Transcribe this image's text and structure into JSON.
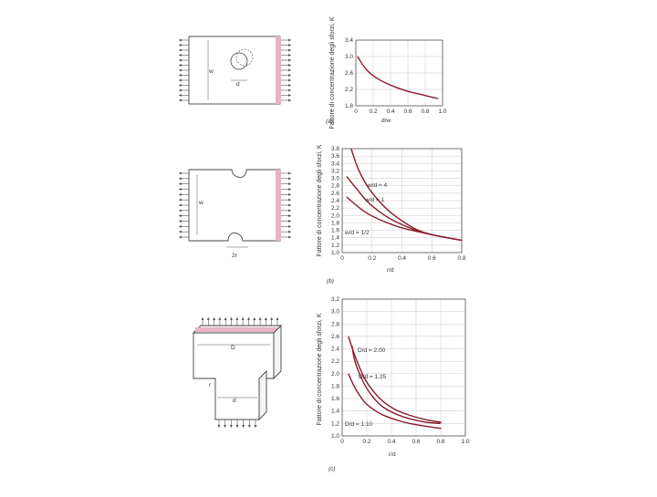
{
  "accent_color": "#8b1a2a",
  "highlight_color": "#e8b4c4",
  "figure_a": {
    "dim_plate_width": "w",
    "dim_hole": "d"
  },
  "figure_b": {
    "dim_width": "w",
    "dim_radius": "2r"
  },
  "figure_c": {
    "dim_top": "D",
    "dim_fillet": "r",
    "dim_stem": "d"
  },
  "chart_data": [
    {
      "type": "line",
      "caption": "(a)",
      "ylabel": "Fattore di concentrazione degli sforzi, K",
      "xlabel": "d/w",
      "xlim": [
        0,
        1.0
      ],
      "ylim": [
        1.8,
        3.4
      ],
      "xticks": [
        "0",
        "0.2",
        "0.4",
        "0.6",
        "0.8",
        "1.0"
      ],
      "yticks": [
        "1.8",
        "2.2",
        "2.6",
        "3.0",
        "3.4"
      ],
      "grid": true,
      "series": [
        {
          "x": [
            0.02,
            0.1,
            0.2,
            0.3,
            0.4,
            0.5,
            0.6,
            0.7,
            0.8,
            0.9,
            0.95
          ],
          "y": [
            3.0,
            2.72,
            2.52,
            2.4,
            2.3,
            2.22,
            2.15,
            2.1,
            2.05,
            2.0,
            1.98
          ]
        }
      ]
    },
    {
      "type": "line",
      "caption": "(b)",
      "ylabel": "Fattore di concentrazione degli sforzi, K",
      "xlabel": "r/d",
      "xlim": [
        0,
        0.8
      ],
      "ylim": [
        1.0,
        3.8
      ],
      "xticks": [
        "0",
        "0.2",
        "0.4",
        "0.6",
        "0.8"
      ],
      "yticks": [
        "1.0",
        "1.2",
        "1.4",
        "1.6",
        "1.8",
        "2.0",
        "2.2",
        "2.4",
        "2.6",
        "2.8",
        "3.0",
        "3.2",
        "3.4",
        "3.6",
        "3.8"
      ],
      "grid": true,
      "series": [
        {
          "name": "w/d = 4",
          "x": [
            0.06,
            0.1,
            0.15,
            0.2,
            0.3,
            0.4,
            0.5,
            0.6,
            0.7,
            0.8
          ],
          "y": [
            3.8,
            3.3,
            2.9,
            2.6,
            2.15,
            1.85,
            1.6,
            1.48,
            1.4,
            1.33
          ]
        },
        {
          "name": "w/d = 1",
          "x": [
            0.03,
            0.1,
            0.15,
            0.2,
            0.3,
            0.4,
            0.5,
            0.6,
            0.7,
            0.8
          ],
          "y": [
            3.05,
            2.7,
            2.45,
            2.25,
            1.95,
            1.75,
            1.58,
            1.48,
            1.4,
            1.33
          ]
        },
        {
          "name": "w/d = 1/2",
          "x": [
            0.03,
            0.1,
            0.15,
            0.2,
            0.3,
            0.4,
            0.5,
            0.6,
            0.7,
            0.8
          ],
          "y": [
            2.5,
            2.25,
            2.1,
            1.98,
            1.8,
            1.66,
            1.57,
            1.48,
            1.4,
            1.33
          ]
        }
      ],
      "labels": [
        "w/d = 4",
        "w/d = 1",
        "w/d = 1/2"
      ]
    },
    {
      "type": "line",
      "caption": "(c)",
      "ylabel": "Fattore di concentrazione degli sforzi, K",
      "xlabel": "r/d",
      "xlim": [
        0,
        1.0
      ],
      "ylim": [
        1.0,
        3.2
      ],
      "xticks": [
        "0",
        "0.2",
        "0.4",
        "0.6",
        "0.8",
        "1.0"
      ],
      "yticks": [
        "1.0",
        "1.2",
        "1.4",
        "1.6",
        "1.8",
        "2.0",
        "2.2",
        "2.4",
        "2.6",
        "2.8",
        "3.0",
        "3.2"
      ],
      "grid": true,
      "series": [
        {
          "name": "D/d = 2.00",
          "x": [
            0.05,
            0.1,
            0.15,
            0.2,
            0.3,
            0.4,
            0.5,
            0.6,
            0.7,
            0.8
          ],
          "y": [
            2.6,
            2.3,
            2.05,
            1.85,
            1.6,
            1.45,
            1.36,
            1.3,
            1.25,
            1.22
          ]
        },
        {
          "name": "D/d = 1.25",
          "x": [
            0.08,
            0.1,
            0.15,
            0.2,
            0.3,
            0.4,
            0.5,
            0.6,
            0.7,
            0.8
          ],
          "y": [
            2.45,
            2.2,
            1.95,
            1.75,
            1.5,
            1.38,
            1.3,
            1.25,
            1.21,
            1.2
          ]
        },
        {
          "name": "D/d = 1.10",
          "x": [
            0.05,
            0.1,
            0.15,
            0.2,
            0.3,
            0.4,
            0.5,
            0.6,
            0.7,
            0.8
          ],
          "y": [
            2.0,
            1.78,
            1.62,
            1.5,
            1.36,
            1.28,
            1.22,
            1.18,
            1.15,
            1.12
          ]
        }
      ],
      "labels": [
        "D/d = 2.00",
        "D/d = 1.25",
        "D/d = 1.10"
      ]
    }
  ]
}
